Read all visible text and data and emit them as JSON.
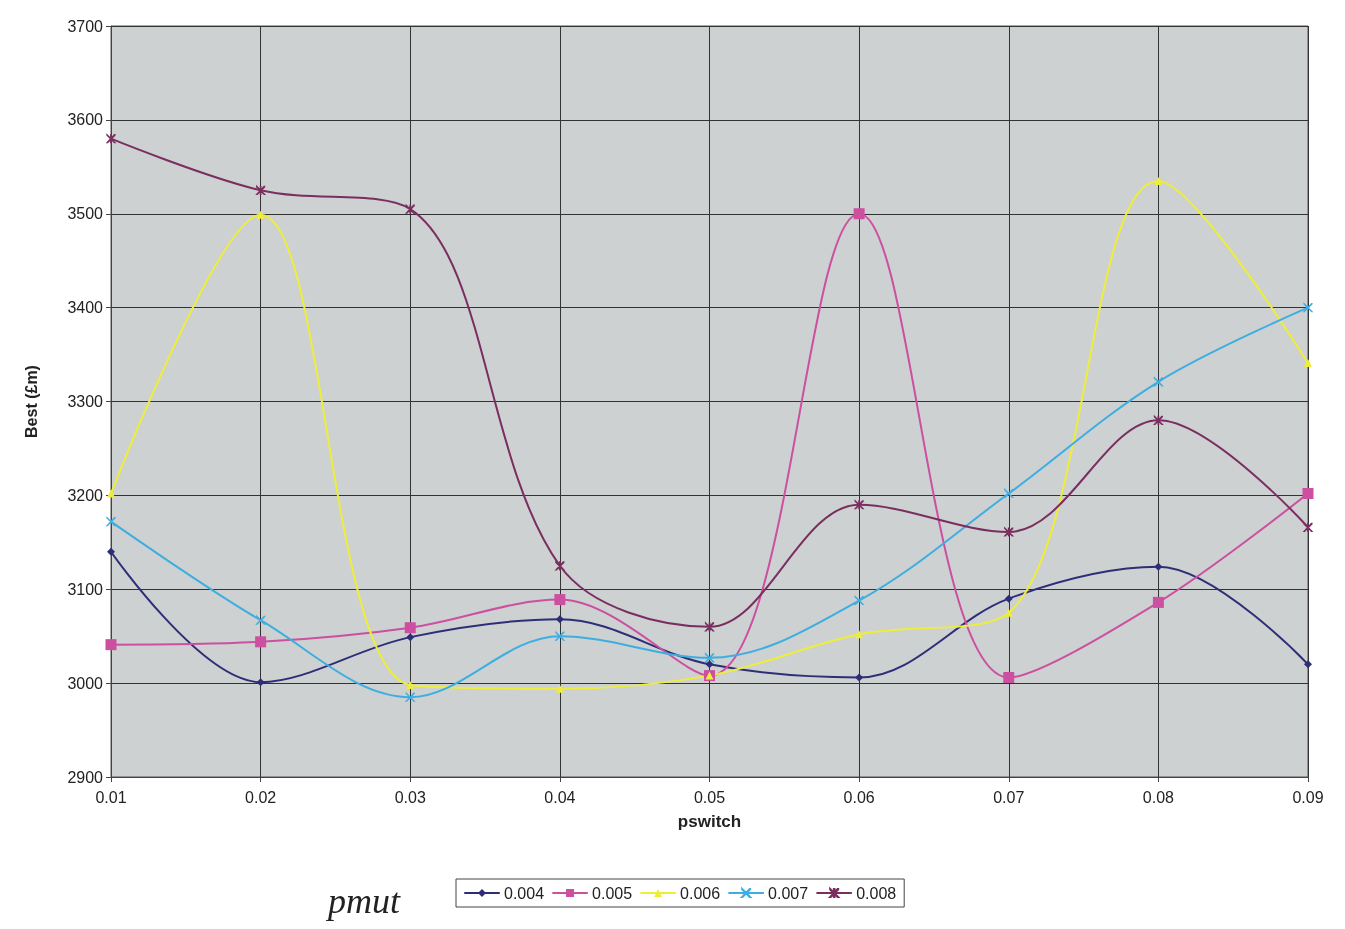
{
  "chart_data": {
    "type": "line",
    "xlabel": "pswitch",
    "ylabel": "Best (£m)",
    "legend_title": "pmut",
    "x": [
      0.01,
      0.02,
      0.03,
      0.04,
      0.05,
      0.06,
      0.07,
      0.08,
      0.09
    ],
    "xlim": [
      0.01,
      0.09
    ],
    "xticks": [
      0.01,
      0.02,
      0.03,
      0.04,
      0.05,
      0.06,
      0.07,
      0.08,
      0.09
    ],
    "ylim": [
      2900,
      3700
    ],
    "yticks": [
      2900,
      3000,
      3100,
      3200,
      3300,
      3400,
      3500,
      3600,
      3700
    ],
    "grid": true,
    "legend": "bottom",
    "series": [
      {
        "name": "0.004",
        "color": "#2e2e78",
        "marker": "diamond",
        "values": [
          3140,
          3001,
          3049,
          3068,
          3020,
          3006,
          3090,
          3124,
          3020
        ]
      },
      {
        "name": "0.005",
        "color": "#cc4fa0",
        "marker": "square",
        "values": [
          3041,
          3044,
          3059,
          3089,
          3008,
          3500,
          3006,
          3086,
          3202
        ]
      },
      {
        "name": "0.006",
        "color": "#eeee3a",
        "marker": "triangle",
        "values": [
          3202,
          3499,
          2998,
          2994,
          3008,
          3052,
          3075,
          3535,
          3341
        ]
      },
      {
        "name": "0.007",
        "color": "#3eaee0",
        "marker": "cross",
        "values": [
          3172,
          3067,
          2985,
          3050,
          3027,
          3088,
          3202,
          3321,
          3400
        ]
      },
      {
        "name": "0.008",
        "color": "#7a2e60",
        "marker": "star",
        "values": [
          3580,
          3525,
          3505,
          3125,
          3060,
          3190,
          3161,
          3280,
          3166
        ]
      }
    ]
  }
}
